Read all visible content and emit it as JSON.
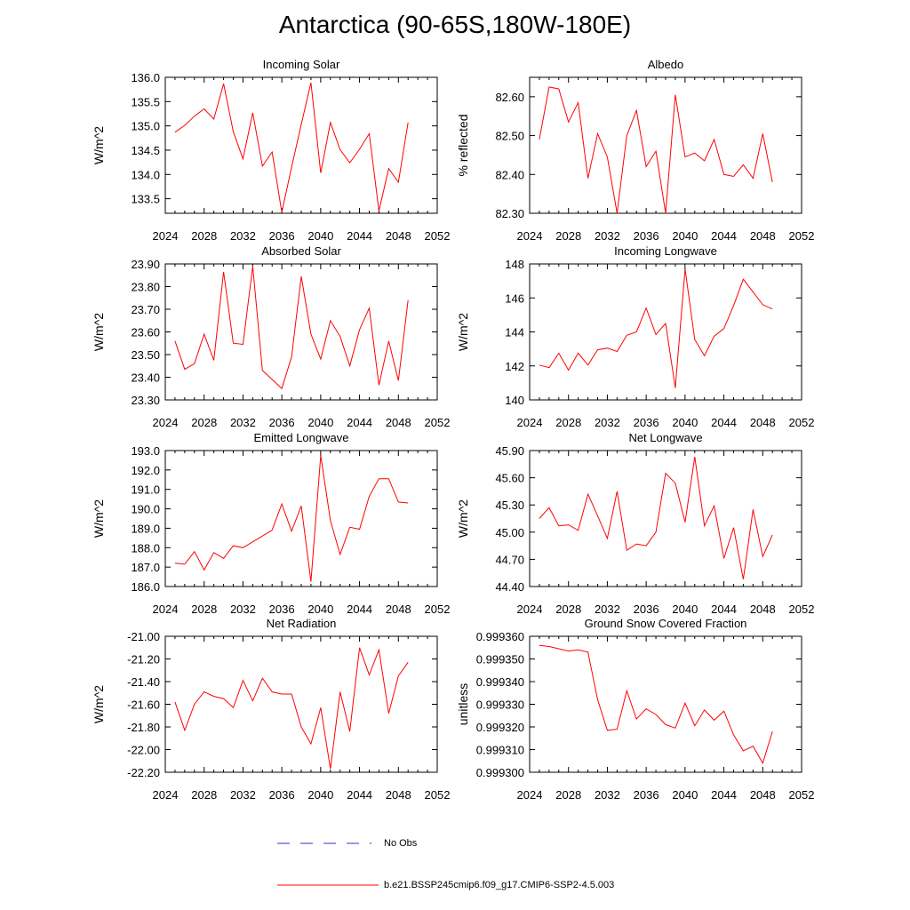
{
  "title": "Antarctica (90-65S,180W-180E)",
  "colors": {
    "model": "#ff0000",
    "obs": "#3333cc",
    "axis": "#000000"
  },
  "legend": {
    "obs_label": "No Obs",
    "model_label": "b.e21.BSSP245cmip6.f09_g17.CMIP6-SSP2-4.5.003"
  },
  "chart_data": [
    {
      "type": "line",
      "title": "Incoming Solar",
      "ylabel": "W/m^2",
      "xlim": [
        2024,
        2052
      ],
      "xticks": [
        2024,
        2028,
        2032,
        2036,
        2040,
        2044,
        2048,
        2052
      ],
      "ylim": [
        133.2,
        136.0
      ],
      "yticks": [
        133.5,
        134.0,
        134.5,
        135.0,
        135.5,
        136.0
      ],
      "ytick_labels": [
        "133.5",
        "134.0",
        "134.5",
        "135.0",
        "135.5",
        "136.0"
      ],
      "x": [
        2025,
        2026,
        2027,
        2028,
        2029,
        2030,
        2031,
        2032,
        2033,
        2034,
        2035,
        2036,
        2037,
        2038,
        2039,
        2040,
        2041,
        2042,
        2043,
        2044,
        2045,
        2046,
        2047,
        2048,
        2049
      ],
      "values": [
        134.87,
        135.01,
        135.2,
        135.35,
        135.14,
        135.87,
        134.88,
        134.32,
        135.27,
        134.17,
        134.46,
        133.22,
        134.15,
        135.03,
        135.89,
        134.03,
        135.07,
        134.51,
        134.24,
        134.52,
        134.84,
        133.25,
        134.12,
        133.84,
        135.07
      ]
    },
    {
      "type": "line",
      "title": "Albedo",
      "ylabel": "% reflected",
      "xlim": [
        2024,
        2052
      ],
      "xticks": [
        2024,
        2028,
        2032,
        2036,
        2040,
        2044,
        2048,
        2052
      ],
      "ylim": [
        82.3,
        82.65
      ],
      "yticks": [
        82.3,
        82.4,
        82.5,
        82.6
      ],
      "ytick_labels": [
        "82.30",
        "82.40",
        "82.50",
        "82.60"
      ],
      "x": [
        2025,
        2026,
        2027,
        2028,
        2029,
        2030,
        2031,
        2032,
        2033,
        2034,
        2035,
        2036,
        2037,
        2038,
        2039,
        2040,
        2041,
        2042,
        2043,
        2044,
        2045,
        2046,
        2047,
        2048,
        2049
      ],
      "values": [
        82.49,
        82.625,
        82.62,
        82.535,
        82.585,
        82.39,
        82.505,
        82.445,
        82.3,
        82.5,
        82.565,
        82.42,
        82.46,
        82.3,
        82.605,
        82.445,
        82.455,
        82.435,
        82.49,
        82.4,
        82.395,
        82.425,
        82.39,
        82.505,
        82.38
      ]
    },
    {
      "type": "line",
      "title": "Absorbed Solar",
      "ylabel": "W/m^2",
      "xlim": [
        2024,
        2052
      ],
      "xticks": [
        2024,
        2028,
        2032,
        2036,
        2040,
        2044,
        2048,
        2052
      ],
      "ylim": [
        23.3,
        23.9
      ],
      "yticks": [
        23.3,
        23.4,
        23.5,
        23.6,
        23.7,
        23.8,
        23.9
      ],
      "ytick_labels": [
        "23.30",
        "23.40",
        "23.50",
        "23.60",
        "23.70",
        "23.80",
        "23.90"
      ],
      "x": [
        2025,
        2026,
        2027,
        2028,
        2029,
        2030,
        2031,
        2032,
        2033,
        2034,
        2035,
        2036,
        2037,
        2038,
        2039,
        2040,
        2041,
        2042,
        2043,
        2044,
        2045,
        2046,
        2047,
        2048,
        2049
      ],
      "values": [
        23.56,
        23.435,
        23.46,
        23.59,
        23.475,
        23.865,
        23.55,
        23.545,
        23.89,
        23.43,
        23.39,
        23.35,
        23.49,
        23.845,
        23.59,
        23.48,
        23.65,
        23.58,
        23.45,
        23.61,
        23.705,
        23.365,
        23.56,
        23.385,
        23.74
      ]
    },
    {
      "type": "line",
      "title": "Incoming Longwave",
      "ylabel": "W/m^2",
      "xlim": [
        2024,
        2052
      ],
      "xticks": [
        2024,
        2028,
        2032,
        2036,
        2040,
        2044,
        2048,
        2052
      ],
      "ylim": [
        140,
        148
      ],
      "yticks": [
        140,
        142,
        144,
        146,
        148
      ],
      "ytick_labels": [
        "140",
        "142",
        "144",
        "146",
        "148"
      ],
      "x": [
        2025,
        2026,
        2027,
        2028,
        2029,
        2030,
        2031,
        2032,
        2033,
        2034,
        2035,
        2036,
        2037,
        2038,
        2039,
        2040,
        2041,
        2042,
        2043,
        2044,
        2045,
        2046,
        2047,
        2048,
        2049
      ],
      "values": [
        142.05,
        141.9,
        142.75,
        141.75,
        142.75,
        142.05,
        142.95,
        143.05,
        142.85,
        143.8,
        144.0,
        145.4,
        143.85,
        144.5,
        140.7,
        147.7,
        143.55,
        142.6,
        143.75,
        144.2,
        145.55,
        147.1,
        146.35,
        145.6,
        145.35
      ]
    },
    {
      "type": "line",
      "title": "Emitted Longwave",
      "ylabel": "W/m^2",
      "xlim": [
        2024,
        2052
      ],
      "xticks": [
        2024,
        2028,
        2032,
        2036,
        2040,
        2044,
        2048,
        2052
      ],
      "ylim": [
        186.0,
        193.0
      ],
      "yticks": [
        186.0,
        187.0,
        188.0,
        189.0,
        190.0,
        191.0,
        192.0,
        193.0
      ],
      "ytick_labels": [
        "186.0",
        "187.0",
        "188.0",
        "189.0",
        "190.0",
        "191.0",
        "192.0",
        "193.0"
      ],
      "x": [
        2025,
        2026,
        2027,
        2028,
        2029,
        2030,
        2031,
        2032,
        2033,
        2034,
        2035,
        2036,
        2037,
        2038,
        2039,
        2040,
        2041,
        2042,
        2043,
        2044,
        2045,
        2046,
        2047,
        2048,
        2049
      ],
      "values": [
        187.2,
        187.15,
        187.8,
        186.85,
        187.75,
        187.45,
        188.1,
        188.0,
        188.3,
        188.6,
        188.9,
        190.25,
        188.85,
        190.15,
        186.25,
        192.75,
        189.4,
        187.65,
        189.05,
        188.95,
        190.65,
        191.55,
        191.55,
        190.35,
        190.3
      ]
    },
    {
      "type": "line",
      "title": "Net Longwave",
      "ylabel": "W/m^2",
      "xlim": [
        2024,
        2052
      ],
      "xticks": [
        2024,
        2028,
        2032,
        2036,
        2040,
        2044,
        2048,
        2052
      ],
      "ylim": [
        44.4,
        45.9
      ],
      "yticks": [
        44.4,
        44.7,
        45.0,
        45.3,
        45.6,
        45.9
      ],
      "ytick_labels": [
        "44.40",
        "44.70",
        "45.00",
        "45.30",
        "45.60",
        "45.90"
      ],
      "x": [
        2025,
        2026,
        2027,
        2028,
        2029,
        2030,
        2031,
        2032,
        2033,
        2034,
        2035,
        2036,
        2037,
        2038,
        2039,
        2040,
        2041,
        2042,
        2043,
        2044,
        2045,
        2046,
        2047,
        2048,
        2049
      ],
      "values": [
        45.15,
        45.27,
        45.07,
        45.08,
        45.02,
        45.42,
        45.18,
        44.93,
        45.45,
        44.8,
        44.87,
        44.85,
        45.0,
        45.65,
        45.54,
        45.11,
        45.83,
        45.07,
        45.29,
        44.71,
        45.05,
        44.48,
        45.25,
        44.73,
        44.97
      ]
    },
    {
      "type": "line",
      "title": "Net Radiation",
      "ylabel": "W/m^2",
      "xlim": [
        2024,
        2052
      ],
      "xticks": [
        2024,
        2028,
        2032,
        2036,
        2040,
        2044,
        2048,
        2052
      ],
      "ylim": [
        -22.2,
        -21.0
      ],
      "yticks": [
        -22.2,
        -22.0,
        -21.8,
        -21.6,
        -21.4,
        -21.2,
        -21.0
      ],
      "ytick_labels": [
        "-22.20",
        "-22.00",
        "-21.80",
        "-21.60",
        "-21.40",
        "-21.20",
        "-21.00"
      ],
      "x": [
        2025,
        2026,
        2027,
        2028,
        2029,
        2030,
        2031,
        2032,
        2033,
        2034,
        2035,
        2036,
        2037,
        2038,
        2039,
        2040,
        2041,
        2042,
        2043,
        2044,
        2045,
        2046,
        2047,
        2048,
        2049
      ],
      "values": [
        -21.58,
        -21.83,
        -21.6,
        -21.49,
        -21.53,
        -21.55,
        -21.63,
        -21.39,
        -21.57,
        -21.37,
        -21.49,
        -21.51,
        -21.51,
        -21.8,
        -21.95,
        -21.63,
        -22.17,
        -21.49,
        -21.84,
        -21.1,
        -21.34,
        -21.12,
        -21.68,
        -21.35,
        -21.23
      ]
    },
    {
      "type": "line",
      "title": "Ground Snow Covered Fraction",
      "ylabel": "unitless",
      "xlim": [
        2024,
        2052
      ],
      "xticks": [
        2024,
        2028,
        2032,
        2036,
        2040,
        2044,
        2048,
        2052
      ],
      "ylim": [
        0.9993,
        0.99936
      ],
      "yticks": [
        0.9993,
        0.99931,
        0.99932,
        0.99933,
        0.99934,
        0.99935,
        0.99936
      ],
      "ytick_labels": [
        "0.999300",
        "0.999310",
        "0.999320",
        "0.999330",
        "0.999340",
        "0.999350",
        "0.999360"
      ],
      "x": [
        2025,
        2026,
        2027,
        2028,
        2029,
        2030,
        2031,
        2032,
        2033,
        2034,
        2035,
        2036,
        2037,
        2038,
        2039,
        2040,
        2041,
        2042,
        2043,
        2044,
        2045,
        2046,
        2047,
        2048,
        2049
      ],
      "values": [
        0.999356,
        0.9993555,
        0.9993545,
        0.9993535,
        0.999354,
        0.999353,
        0.999332,
        0.9993185,
        0.999319,
        0.999336,
        0.9993235,
        0.999328,
        0.9993255,
        0.999321,
        0.9993195,
        0.9993305,
        0.9993205,
        0.9993275,
        0.999323,
        0.999327,
        0.9993165,
        0.9993095,
        0.9993115,
        0.999304,
        0.999318
      ]
    }
  ]
}
